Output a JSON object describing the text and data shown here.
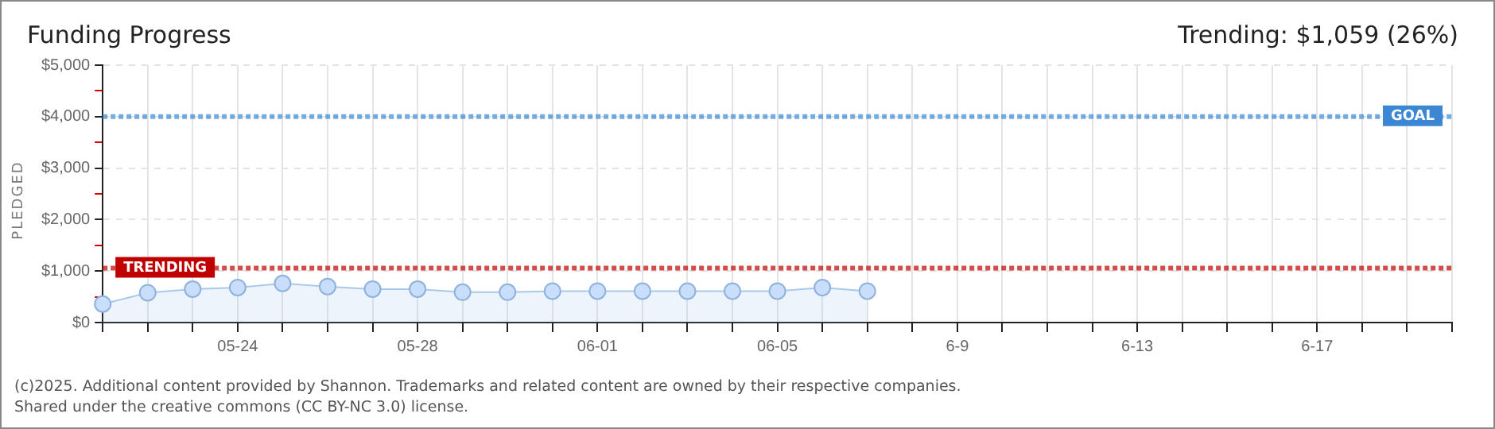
{
  "chart_data": {
    "type": "area",
    "title": "Funding Progress",
    "subtitle": "Trending: $1,059 (26%)",
    "ylabel": "PLEDGED",
    "categories": [
      null,
      null,
      null,
      "05-24",
      null,
      null,
      null,
      "05-28",
      null,
      null,
      null,
      "06-01",
      null,
      null,
      null,
      "06-05",
      null,
      null,
      null,
      "6-9",
      null,
      null,
      null,
      "6-13",
      null,
      null,
      null,
      "6-17",
      null,
      null,
      null
    ],
    "series": [
      {
        "color": "#a9c9ec",
        "values": [
          360,
          580,
          650,
          680,
          760,
          700,
          650,
          650,
          590,
          590,
          610,
          610,
          610,
          610,
          610,
          610,
          680,
          610,
          null,
          null,
          null,
          null,
          null,
          null,
          null,
          null,
          null,
          null,
          null,
          null,
          null
        ]
      }
    ],
    "ylim": [
      0,
      5000
    ],
    "yticks": [
      {
        "value": 0,
        "label": "$0"
      },
      {
        "value": 500,
        "label": null
      },
      {
        "value": 1000,
        "label": "$1,000"
      },
      {
        "value": 1500,
        "label": null
      },
      {
        "value": 2000,
        "label": "$2,000"
      },
      {
        "value": 2500,
        "label": null
      },
      {
        "value": 3000,
        "label": "$3,000"
      },
      {
        "value": 3500,
        "label": null
      },
      {
        "value": 4000,
        "label": "$4,000"
      },
      {
        "value": 4500,
        "label": null
      },
      {
        "value": 5000,
        "label": "$5,000"
      }
    ],
    "ref_lines": [
      {
        "axis": "y",
        "value": 4000,
        "label": "GOAL",
        "color": "#3b87d4",
        "line_style": "dotted"
      },
      {
        "axis": "y",
        "value": 1059,
        "label": "TRENDING",
        "color": "#c00000",
        "line_style": "dotted"
      }
    ],
    "grid": true,
    "marker": "circle",
    "legend": false,
    "annotations": [
      "(c)2025. Additional content provided by Shannon. Trademarks and related content are owned by their respective companies.",
      "Shared under the creative commons (CC BY-NC 3.0) license."
    ]
  }
}
